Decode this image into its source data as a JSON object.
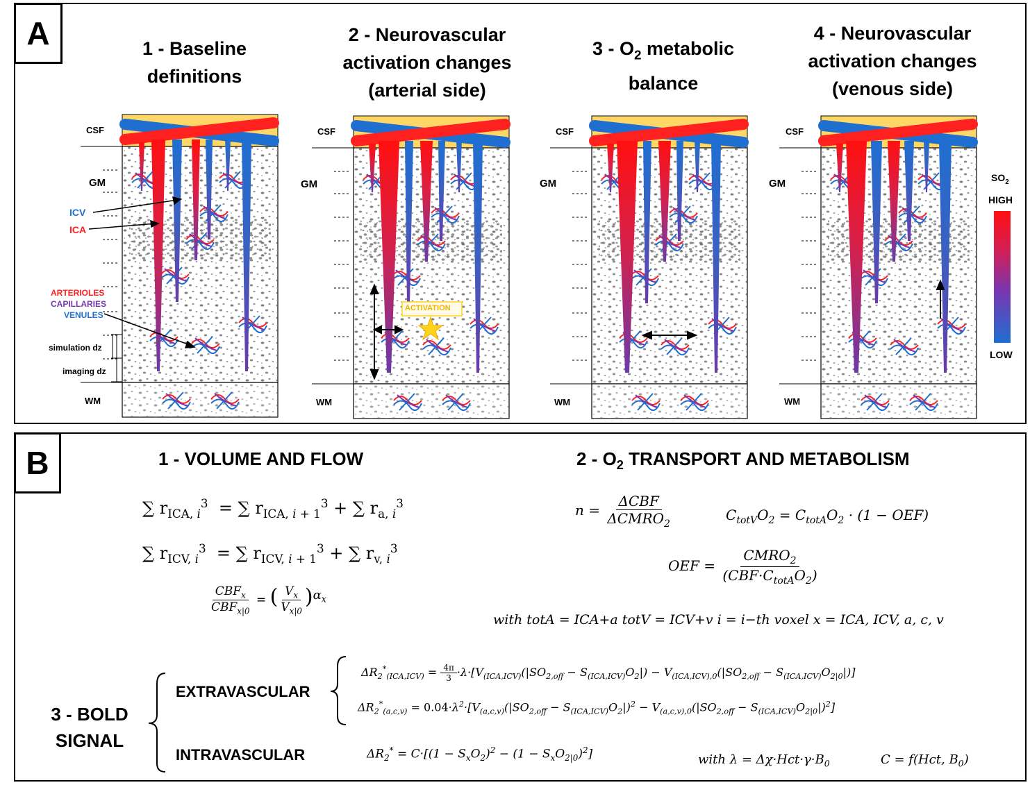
{
  "panel_a": {
    "letter": "A",
    "titles": {
      "t1": {
        "pre": "1 - Baseline",
        "post": "definitions"
      },
      "t2": {
        "pre": "2 - Neurovascular",
        "mid": "activation changes",
        "post": "(arterial side)"
      },
      "t3": {
        "pre": "3 - O",
        "sub": "2",
        "mid": " metabolic",
        "post": "balance"
      },
      "t4": {
        "pre": "4 - Neurovascular",
        "mid": "activation changes",
        "post": "(venous side)"
      }
    },
    "layer_labels": {
      "csf": "CSF",
      "gm": "GM",
      "wm": "WM"
    },
    "vessel_labels": {
      "icv": "ICV",
      "ica": "ICA"
    },
    "micro_labels": {
      "arterioles": "ARTERIOLES",
      "capillaries": "CAPILLARIES",
      "venules": "VENULES"
    },
    "dz_labels": {
      "simulation": "simulation dz",
      "imaging": "imaging dz"
    },
    "activation_label": "ACTIVATION",
    "colorbar": {
      "title_pre": "SO",
      "title_sub": "2",
      "high": "HIGH",
      "low": "LOW"
    },
    "colors": {
      "artery": "#ff1a1a",
      "vein": "#1f6fd1",
      "capillary": "#7a3ab0",
      "csf": "#ffd766",
      "activation": "#ffd31a"
    }
  },
  "panel_b": {
    "letter": "B",
    "h1": "1 - VOLUME  AND  FLOW",
    "h2": {
      "pre": "2 - O",
      "sub": "2",
      "post": " TRANSPORT AND METABOLISM"
    },
    "h3": {
      "line1": "3 - BOLD",
      "line2": "SIGNAL"
    },
    "extravascular": "EXTRAVASCULAR",
    "intravascular": "INTRAVASCULAR",
    "eq": {
      "vol1": "∑ r",
      "n_eq": "n =",
      "with_line": "with  totA = ICA+a        totV = ICV+v      i = i−th voxel      x = ICA, ICV, a, c, v",
      "lambda_line": "with  λ = Δχ·Hct·γ·B",
      "c_line": "C = f(Hct, B",
      "zero": "0",
      "coef1": "4π",
      "coef1d": "3",
      "coef2": "0.04"
    }
  }
}
